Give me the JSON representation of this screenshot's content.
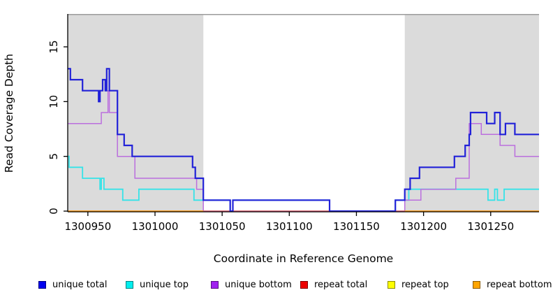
{
  "chart_data": {
    "type": "line",
    "subtype": "step-coverage-plot",
    "title": "",
    "xlabel": "Coordinate in Reference Genome",
    "ylabel": "Read Coverage Depth",
    "xlim": [
      1300935,
      1301286
    ],
    "ylim": [
      0,
      18
    ],
    "xticks": [
      1300950,
      1301000,
      1301050,
      1301100,
      1301150,
      1301200,
      1301250
    ],
    "yticks": [
      0,
      5,
      10,
      15
    ],
    "grid": false,
    "legend_position": "bottom",
    "shade_color": "#DBDBDB",
    "shade_top_edge_color": "#9B9B9B",
    "shaded_regions": [
      {
        "x0": 1300935,
        "x1": 1301036
      },
      {
        "x0": 1301186,
        "x1": 1301286
      }
    ],
    "series": [
      {
        "label": "unique total",
        "legend_color": "#0000EE",
        "line_color": "#2222D8",
        "line_width": 2.2,
        "points": [
          [
            1300935,
            13
          ],
          [
            1300937,
            12
          ],
          [
            1300946,
            11
          ],
          [
            1300958,
            10
          ],
          [
            1300959,
            11
          ],
          [
            1300961,
            12
          ],
          [
            1300963,
            11
          ],
          [
            1300964,
            13
          ],
          [
            1300966,
            11
          ],
          [
            1300972,
            7
          ],
          [
            1300977,
            6
          ],
          [
            1300983,
            5
          ],
          [
            1301028,
            4
          ],
          [
            1301030,
            3
          ],
          [
            1301036,
            1
          ],
          [
            1301056,
            0
          ],
          [
            1301058,
            1
          ],
          [
            1301130,
            0
          ],
          [
            1301179,
            1
          ],
          [
            1301186,
            2
          ],
          [
            1301190,
            3
          ],
          [
            1301197,
            4
          ],
          [
            1301223,
            5
          ],
          [
            1301231,
            6
          ],
          [
            1301234,
            7
          ],
          [
            1301235,
            9
          ],
          [
            1301247,
            8
          ],
          [
            1301253,
            9
          ],
          [
            1301257,
            7
          ],
          [
            1301261,
            8
          ],
          [
            1301268,
            7
          ]
        ]
      },
      {
        "label": "unique top",
        "legend_color": "#00EEEE",
        "line_color": "#35E3E8",
        "line_width": 1.8,
        "points": [
          [
            1300935,
            5
          ],
          [
            1300936,
            4
          ],
          [
            1300946,
            3
          ],
          [
            1300959,
            2
          ],
          [
            1300960,
            3
          ],
          [
            1300962,
            2
          ],
          [
            1300976,
            1
          ],
          [
            1300988,
            2
          ],
          [
            1301029,
            1
          ],
          [
            1301056,
            0
          ],
          [
            1301058,
            1
          ],
          [
            1301130,
            0
          ],
          [
            1301179,
            1
          ],
          [
            1301189,
            2
          ],
          [
            1301248,
            1
          ],
          [
            1301253,
            2
          ],
          [
            1301255,
            1
          ],
          [
            1301260,
            2
          ]
        ]
      },
      {
        "label": "unique bottom",
        "legend_color": "#A020F0",
        "line_color": "#BB6FDE",
        "line_width": 1.5,
        "points": [
          [
            1300935,
            8
          ],
          [
            1300960,
            9
          ],
          [
            1300965,
            11
          ],
          [
            1300966,
            9
          ],
          [
            1300972,
            5
          ],
          [
            1300985,
            3
          ],
          [
            1301031,
            2
          ],
          [
            1301036,
            0
          ],
          [
            1301186,
            1
          ],
          [
            1301198,
            2
          ],
          [
            1301224,
            3
          ],
          [
            1301234,
            8
          ],
          [
            1301243,
            7
          ],
          [
            1301257,
            6
          ],
          [
            1301268,
            5
          ]
        ]
      },
      {
        "label": "repeat total",
        "legend_color": "#EE0000",
        "line_color": "#D6537E",
        "line_width": 1.5,
        "points": [
          [
            1300935,
            0
          ]
        ]
      },
      {
        "label": "repeat top",
        "legend_color": "#FFFF00",
        "line_color": "#F2F200",
        "line_width": 1.5,
        "points": [
          [
            1300935,
            0
          ]
        ]
      },
      {
        "label": "repeat bottom",
        "legend_color": "#FFA500",
        "line_color": "#FF9D0A",
        "line_width": 1.6,
        "points": [
          [
            1300935,
            0
          ]
        ]
      }
    ]
  }
}
